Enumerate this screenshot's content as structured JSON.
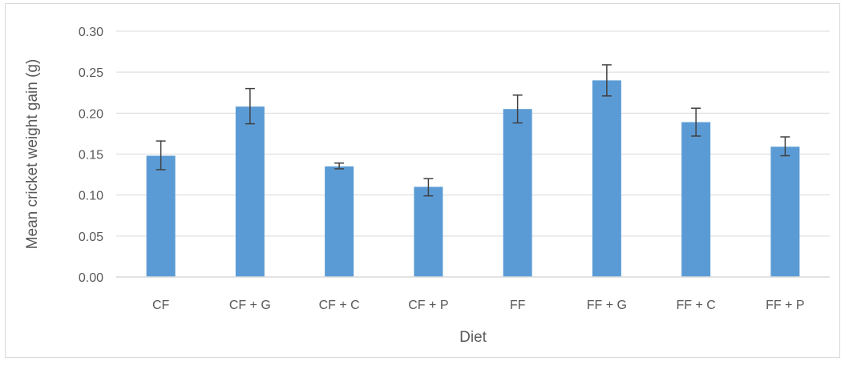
{
  "chart_data": {
    "type": "bar",
    "title": "",
    "xlabel": "Diet",
    "ylabel": "Mean cricket weight gain (g)",
    "categories": [
      "CF",
      "CF + G",
      "CF + C",
      "CF + P",
      "FF",
      "FF + G",
      "FF + C",
      "FF + P"
    ],
    "values": [
      0.148,
      0.208,
      0.135,
      0.11,
      0.205,
      0.24,
      0.189,
      0.159
    ],
    "error_low": [
      0.131,
      0.187,
      0.132,
      0.099,
      0.188,
      0.221,
      0.172,
      0.148
    ],
    "error_high": [
      0.166,
      0.23,
      0.139,
      0.12,
      0.222,
      0.259,
      0.206,
      0.171
    ],
    "ylim": [
      0,
      0.3
    ],
    "yticks": [
      "0.00",
      "0.05",
      "0.10",
      "0.15",
      "0.20",
      "0.25",
      "0.30"
    ],
    "grid": true,
    "legend": "none",
    "bar_color": "#5b9bd5",
    "error_bar_color": "#404040",
    "gridline_color": "#d9d9d9"
  }
}
